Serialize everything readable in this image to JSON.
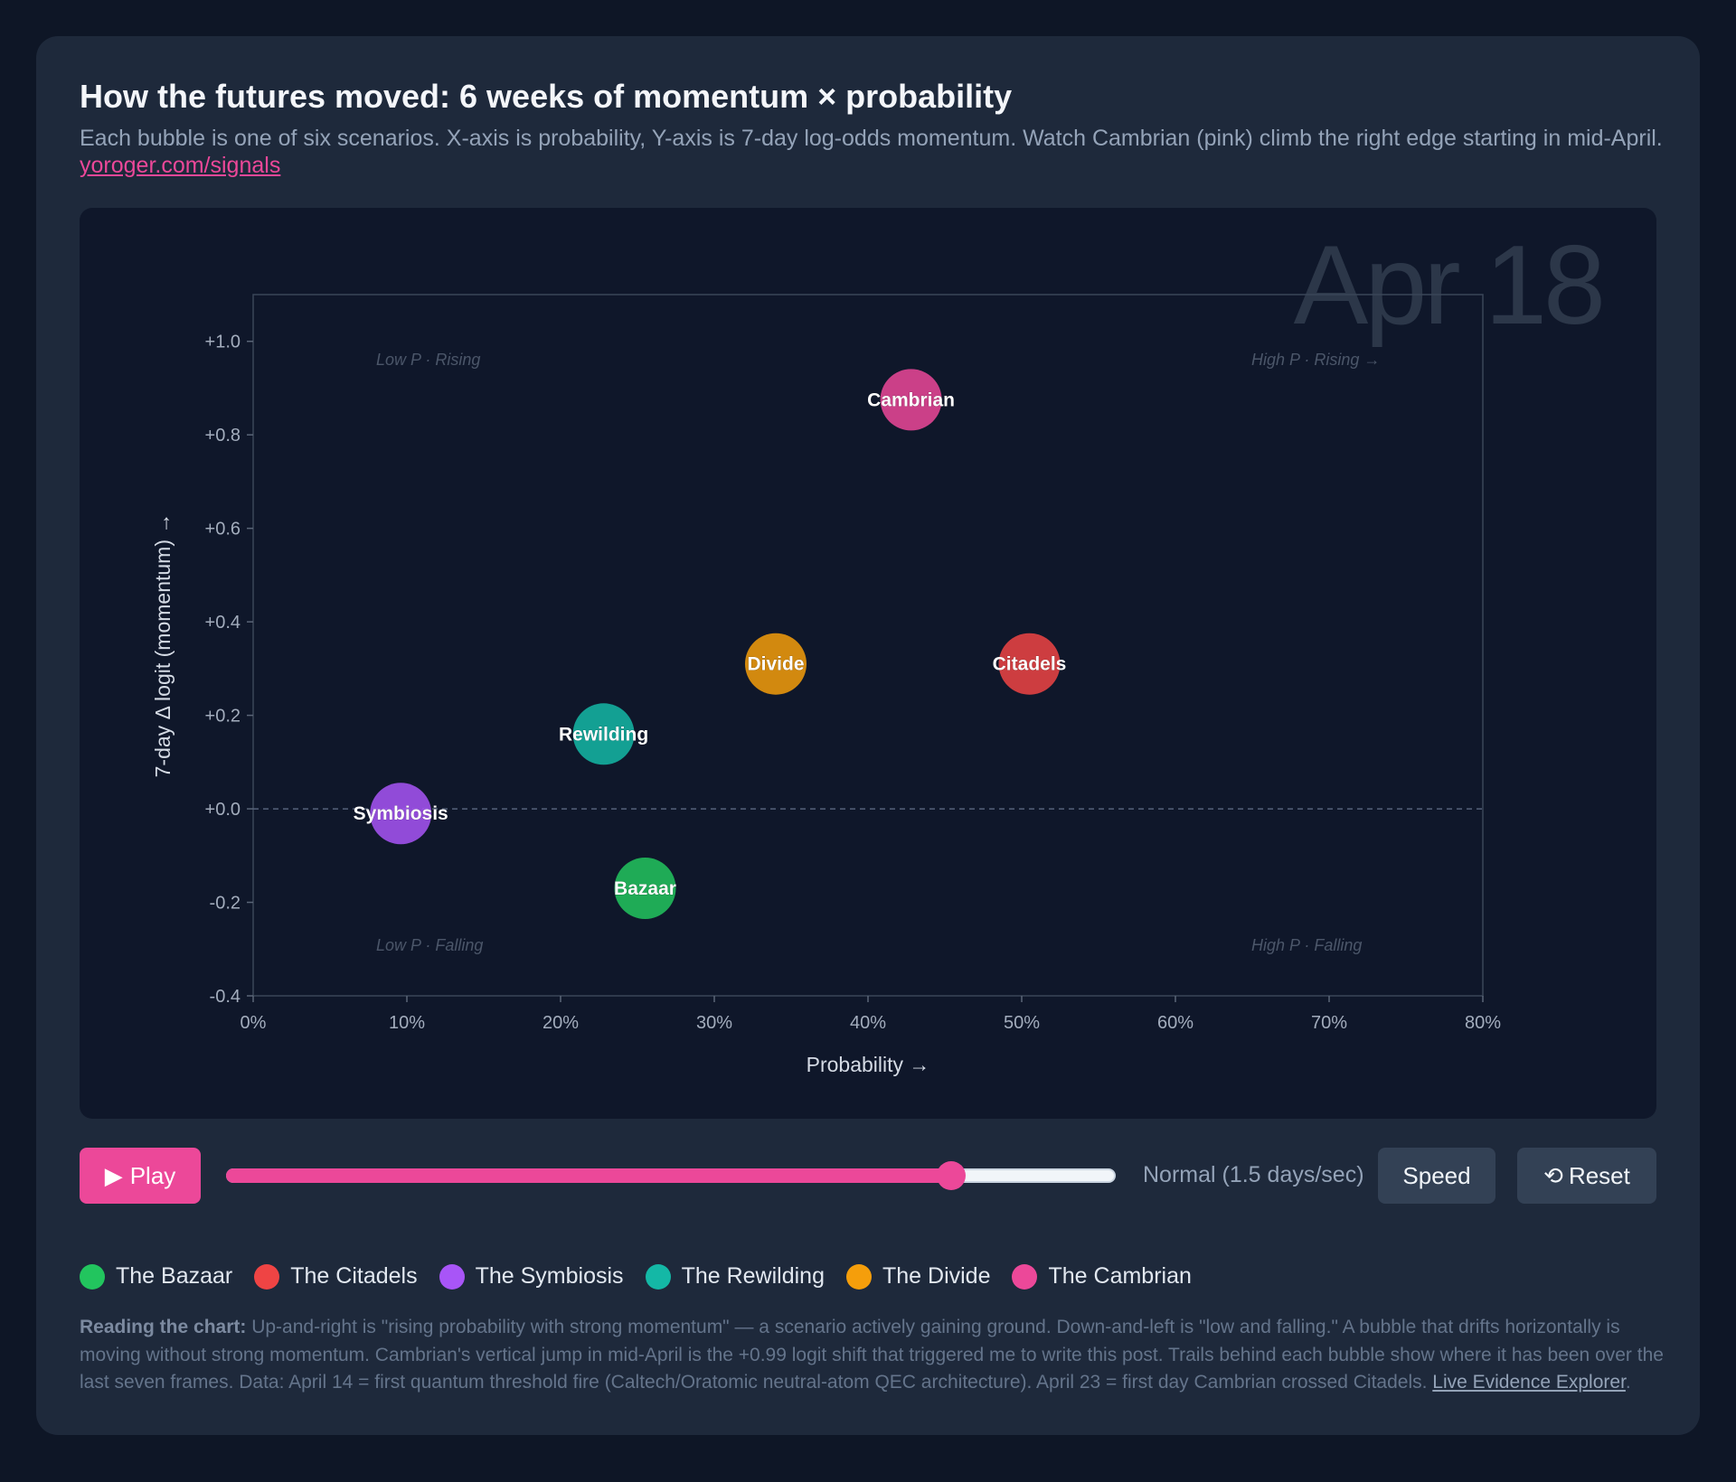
{
  "header": {
    "title": "How the futures moved: 6 weeks of momentum × probability",
    "subtitle": "Each bubble is one of six scenarios. X-axis is probability, Y-axis is 7-day log-odds momentum. Watch Cambrian (pink) climb the right edge starting in mid-April.",
    "link_label": "yoroger.com/signals"
  },
  "chart_data": {
    "type": "scatter",
    "date_watermark": "Apr 18",
    "xlabel": "Probability →",
    "ylabel": "7-day Δ logit (momentum) →",
    "xlim": [
      0,
      0.8
    ],
    "ylim": [
      -0.4,
      1.1
    ],
    "x_ticks": [
      0,
      0.1,
      0.2,
      0.3,
      0.4,
      0.5,
      0.6,
      0.7,
      0.8
    ],
    "x_tick_labels": [
      "0%",
      "10%",
      "20%",
      "30%",
      "40%",
      "50%",
      "60%",
      "70%",
      "80%"
    ],
    "y_ticks": [
      1.0,
      0.8,
      0.6,
      0.4,
      0.2,
      0.0,
      -0.2,
      -0.4
    ],
    "y_tick_labels": [
      "+1.0",
      "+0.8",
      "+0.6",
      "+0.4",
      "+0.2",
      "+0.0",
      "-0.2",
      "-0.4"
    ],
    "zero_line": true,
    "quadrant_labels": {
      "top_left": "Low P · Rising",
      "top_right": "High P · Rising →",
      "bottom_left": "Low P · Falling",
      "bottom_right": "High P · Falling"
    },
    "series": [
      {
        "name": "The Bazaar",
        "label": "Bazaar",
        "x": 0.255,
        "y": -0.17,
        "color": "#22c55e"
      },
      {
        "name": "The Citadels",
        "label": "Citadels",
        "x": 0.505,
        "y": 0.31,
        "color": "#ef4444"
      },
      {
        "name": "The Symbiosis",
        "label": "Symbiosis",
        "x": 0.096,
        "y": -0.01,
        "color": "#a855f7"
      },
      {
        "name": "The Rewilding",
        "label": "Rewilding",
        "x": 0.228,
        "y": 0.16,
        "color": "#14b8a6"
      },
      {
        "name": "The Divide",
        "label": "Divide",
        "x": 0.34,
        "y": 0.31,
        "color": "#f59e0b"
      },
      {
        "name": "The Cambrian",
        "label": "Cambrian",
        "x": 0.428,
        "y": 0.875,
        "color": "#ec4899"
      }
    ]
  },
  "controls": {
    "play_icon": "▶",
    "play_label": "Play",
    "timeline_progress": 0.815,
    "speed_label": "Normal (1.5 days/sec)",
    "speed_button": "Speed",
    "reset_icon": "⟲",
    "reset_label": "Reset"
  },
  "legend": [
    {
      "label": "The Bazaar",
      "color": "#22c55e"
    },
    {
      "label": "The Citadels",
      "color": "#ef4444"
    },
    {
      "label": "The Symbiosis",
      "color": "#a855f7"
    },
    {
      "label": "The Rewilding",
      "color": "#14b8a6"
    },
    {
      "label": "The Divide",
      "color": "#f59e0b"
    },
    {
      "label": "The Cambrian",
      "color": "#ec4899"
    }
  ],
  "footnote": {
    "lead": "Reading the chart:",
    "body": " Up-and-right is \"rising probability with strong momentum\" — a scenario actively gaining ground. Down-and-left is \"low and falling.\" A bubble that drifts horizontally is moving without strong momentum. Cambrian's vertical jump in mid-April is the +0.99 logit shift that triggered me to write this post. Trails behind each bubble show where it has been over the last seven frames. Data: April 14 = first quantum threshold fire (Caltech/Oratomic neutral-atom QEC architecture). April 23 = first day Cambrian crossed Citadels. ",
    "link_label": "Live Evidence Explorer",
    "tail": "."
  }
}
